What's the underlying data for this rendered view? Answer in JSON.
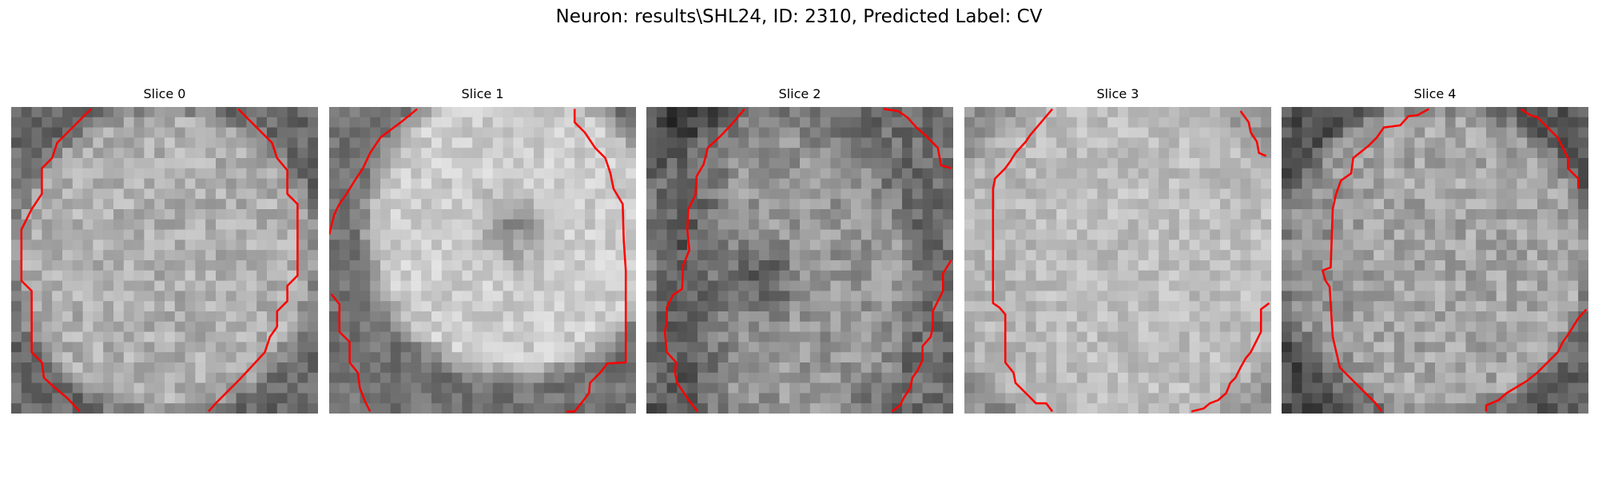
{
  "figure": {
    "title": "Neuron: results\\SHL24, ID: 2310, Predicted Label: CV"
  },
  "panels": [
    {
      "title": "Slice 0"
    },
    {
      "title": "Slice 1"
    },
    {
      "title": "Slice 2"
    },
    {
      "title": "Slice 3"
    },
    {
      "title": "Slice 4"
    }
  ],
  "colors": {
    "contour": "#ff0000",
    "background": "#ffffff"
  }
}
